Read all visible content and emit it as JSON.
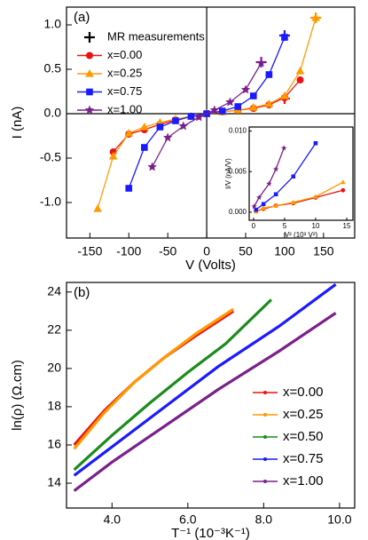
{
  "chart_data": [
    {
      "type": "line",
      "label": "(a)",
      "xlabel": "V (Volts)",
      "ylabel": "I (nA)",
      "xlim": [
        -180,
        190
      ],
      "ylim": [
        -1.4,
        1.2
      ],
      "xticks": [
        -150,
        -100,
        -50,
        0,
        50,
        100,
        150
      ],
      "yticks": [
        {
          "value": -1,
          "label": "-1.0"
        },
        -0.5,
        {
          "value": 0,
          "label": "0.0"
        },
        0.5,
        {
          "value": 1,
          "label": "1.0"
        }
      ],
      "zero_lines": true,
      "legend": "upper left",
      "series": [
        {
          "name": "MR measurements",
          "color": "#000000",
          "marker": "plus",
          "line": false,
          "x": [
            140,
            100,
            70,
            100
          ],
          "values": [
            1.08,
            0.88,
            0.58,
            0.17
          ],
          "point_colors": [
            "#ff9900",
            "#1a1aff",
            "#7b1f8c",
            "#ee1111"
          ]
        },
        {
          "name": "x=0.00",
          "color": "#ee1111",
          "marker": "circle",
          "line": true,
          "x": [
            -120,
            -100,
            -80,
            -60,
            -40,
            -20,
            0,
            20,
            40,
            60,
            80,
            100,
            120
          ],
          "values": [
            -0.43,
            -0.23,
            -0.18,
            -0.12,
            -0.07,
            -0.03,
            0,
            0.02,
            0.04,
            0.06,
            0.1,
            0.18,
            0.38
          ]
        },
        {
          "name": "x=0.25",
          "color": "#ff9900",
          "marker": "triangle",
          "line": true,
          "x": [
            -140,
            -120,
            -100,
            -80,
            -60,
            -40,
            -20,
            0,
            20,
            40,
            60,
            80,
            100,
            120,
            140
          ],
          "values": [
            -1.07,
            -0.48,
            -0.22,
            -0.15,
            -0.1,
            -0.06,
            -0.03,
            0,
            0.02,
            0.04,
            0.07,
            0.11,
            0.2,
            0.48,
            1.08
          ]
        },
        {
          "name": "x=0.75",
          "color": "#1a1aff",
          "marker": "square",
          "line": true,
          "x": [
            -100,
            -80,
            -60,
            -40,
            -20,
            0,
            20,
            40,
            60,
            80,
            100
          ],
          "values": [
            -0.84,
            -0.38,
            -0.15,
            -0.08,
            -0.03,
            0,
            0.03,
            0.08,
            0.2,
            0.44,
            0.86
          ]
        },
        {
          "name": "x=1.00",
          "color": "#7b1f8c",
          "marker": "star",
          "line": true,
          "x": [
            -70,
            -50,
            -30,
            -10,
            10,
            30,
            50,
            70
          ],
          "values": [
            -0.6,
            -0.27,
            -0.14,
            -0.04,
            0.04,
            0.13,
            0.27,
            0.57
          ]
        }
      ]
    },
    {
      "type": "line",
      "xlabel": "V² (10³ V²)",
      "ylabel": "I/V (nA/V)",
      "xlim": [
        -0.7,
        16
      ],
      "ylim": [
        -0.001,
        0.0105
      ],
      "xticks": [
        0,
        5,
        10,
        15
      ],
      "yticks": [
        {
          "value": 0,
          "label": "0.000"
        },
        {
          "value": 0.005,
          "label": "0.005"
        },
        {
          "value": 0.01,
          "label": "0.010"
        }
      ],
      "series": [
        {
          "color": "#ee1111",
          "marker": "circle",
          "line": true,
          "x": [
            0.4,
            1.6,
            3.6,
            6.4,
            10,
            14.4
          ],
          "values": [
            0.0001,
            0.0004,
            0.0008,
            0.0011,
            0.0018,
            0.0027
          ]
        },
        {
          "color": "#ff9900",
          "marker": "triangle",
          "line": true,
          "x": [
            0.4,
            1.6,
            3.6,
            6.4,
            10,
            14.4
          ],
          "values": [
            0.0001,
            0.0005,
            0.0008,
            0.0012,
            0.0019,
            0.0037
          ]
        },
        {
          "color": "#1a1aff",
          "marker": "square",
          "line": true,
          "x": [
            0.4,
            1.6,
            3.6,
            6.4,
            10
          ],
          "values": [
            0.0003,
            0.001,
            0.0022,
            0.0044,
            0.0085
          ]
        },
        {
          "color": "#7b1f8c",
          "marker": "star",
          "line": true,
          "x": [
            0.1,
            0.9,
            2.5,
            3.6,
            4.9
          ],
          "values": [
            0.0007,
            0.0018,
            0.0035,
            0.0053,
            0.0079
          ]
        }
      ]
    },
    {
      "type": "line",
      "label": "(b)",
      "xlabel": "T⁻¹ (10⁻³K⁻¹)",
      "ylabel": "ln(ρ) (Ω.cm)",
      "xlim": [
        2.8,
        10.4
      ],
      "ylim": [
        12.7,
        24.5
      ],
      "xticks": [
        {
          "value": 4,
          "label": "4.0"
        },
        {
          "value": 6,
          "label": "6.0"
        },
        {
          "value": 8,
          "label": "8.0"
        },
        {
          "value": 10,
          "label": "10.0"
        }
      ],
      "yticks": [
        14,
        16,
        18,
        20,
        22,
        24
      ],
      "legend": "lower right",
      "series": [
        {
          "name": "x=0.00",
          "color": "#ee1111",
          "marker": "line",
          "line": true,
          "x": [
            3.0,
            3.8,
            4.6,
            5.4,
            6.2,
            7.2
          ],
          "values": [
            16.0,
            17.8,
            19.3,
            20.6,
            21.7,
            23.0
          ]
        },
        {
          "name": "x=0.25",
          "color": "#ff9900",
          "marker": "line",
          "line": true,
          "x": [
            3.0,
            3.8,
            4.6,
            5.4,
            6.2,
            7.2
          ],
          "values": [
            15.8,
            17.7,
            19.3,
            20.6,
            21.8,
            23.1
          ]
        },
        {
          "name": "x=0.50",
          "color": "#1a8c1a",
          "marker": "line",
          "line": true,
          "x": [
            3.0,
            4.0,
            5.0,
            6.0,
            7.0,
            8.2
          ],
          "values": [
            14.7,
            16.5,
            18.2,
            19.8,
            21.3,
            23.6
          ]
        },
        {
          "name": "x=0.75",
          "color": "#1a1aff",
          "marker": "line",
          "line": true,
          "x": [
            3.0,
            4.0,
            5.4,
            6.8,
            8.4,
            9.9
          ],
          "values": [
            14.4,
            15.9,
            18.0,
            20.1,
            22.2,
            24.4
          ]
        },
        {
          "name": "x=1.00",
          "color": "#7b1f8c",
          "marker": "line",
          "line": true,
          "x": [
            3.0,
            4.0,
            5.4,
            6.8,
            8.4,
            9.9
          ],
          "values": [
            13.6,
            15.1,
            17.0,
            18.9,
            20.9,
            22.9
          ]
        }
      ]
    }
  ]
}
